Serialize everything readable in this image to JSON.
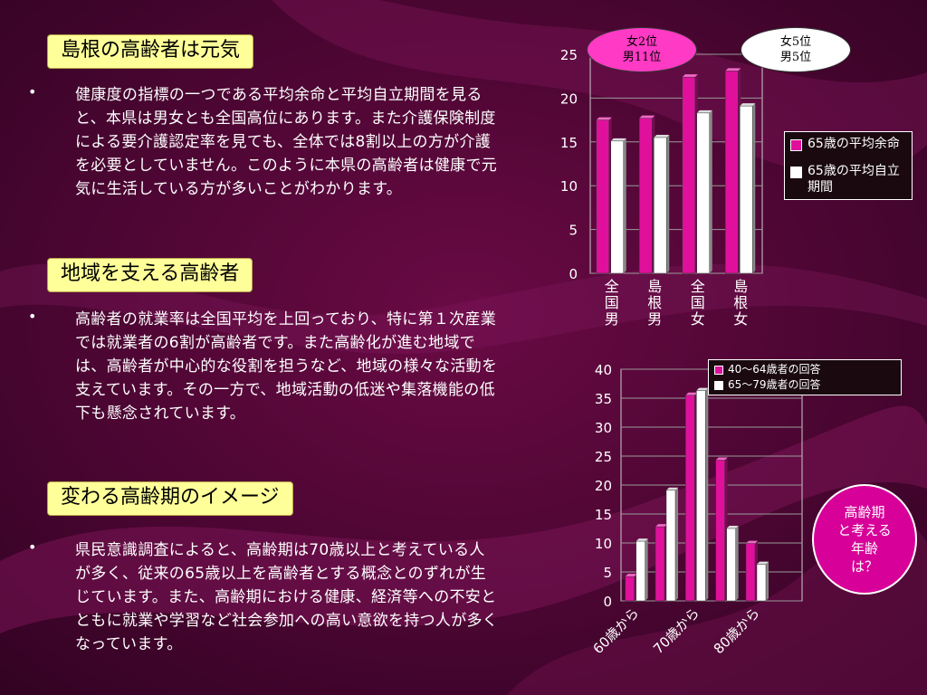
{
  "sections": [
    {
      "title": "島根の高齢者は元気",
      "bullet": "•",
      "text": "健康度の指標の一つである平均余命と平均自立期間を見ると、本県は男女とも全国高位にあります。また介護保険制度による要介護認定率を見ても、全体では8割以上の方が介護を必要としていません。このように本県の高齢者は健康で元気に生活している方が多いことがわかります。"
    },
    {
      "title": "地域を支える高齢者",
      "bullet": "•",
      "text": "高齢者の就業率は全国平均を上回っており、特に第１次産業では就業者の6割が高齢者です。また高齢化が進む地域では、高齢者が中心的な役割を担うなど、地域の様々な活動を支えています。その一方で、地域活動の低迷や集落機能の低下も懸念されています。"
    },
    {
      "title": "変わる高齢期のイメージ",
      "bullet": "•",
      "text": "県民意識調査によると、高齢期は70歳以上と考えている人が多く、従来の65歳以上を高齢者とする概念とのずれが生じています。また、高齢期における健康、経済等への不安とともに就業や学習など社会参加への高い意欲を持つ人が多くなっています。"
    }
  ],
  "annotations": {
    "rank_female_male_left": [
      "女2位",
      "男11位"
    ],
    "rank_female_male_right": [
      "女5位",
      "男5位"
    ],
    "elderly_age_note": [
      "高齢期",
      "と考える",
      "年齢",
      "は？"
    ]
  },
  "colors": {
    "background": "#4a0530",
    "series_magenta": "#e0109c",
    "series_white": "#ffffff",
    "title_box": "#ffff99",
    "note_circle": "#d70099"
  },
  "chart_data": [
    {
      "type": "bar",
      "categories": [
        "全国男",
        "島根男",
        "全国女",
        "島根女"
      ],
      "series": [
        {
          "name": "65歳の平均余命",
          "values": [
            17.5,
            17.7,
            22.4,
            23.1
          ]
        },
        {
          "name": "65歳の平均自立期間",
          "values": [
            15.1,
            15.5,
            18.3,
            19.1
          ]
        }
      ],
      "ylim": [
        0,
        25
      ],
      "yticks": [
        0,
        5,
        10,
        15,
        20,
        25
      ],
      "legend_position": "right",
      "grid": true
    },
    {
      "type": "bar",
      "categories": [
        "60歳から",
        "",
        "70歳から",
        "",
        "80歳から",
        ""
      ],
      "series": [
        {
          "name": "40～64歳者の回答",
          "values": [
            4.2,
            12.8,
            35.5,
            24.3,
            9.9,
            0
          ]
        },
        {
          "name": "65～79歳者の回答",
          "values": [
            10.3,
            19.1,
            36.3,
            12.5,
            6.3,
            0
          ]
        }
      ],
      "ylim": [
        0,
        40
      ],
      "yticks": [
        0,
        5,
        10,
        15,
        20,
        25,
        30,
        35,
        40
      ],
      "legend_position": "top-right",
      "grid": true
    }
  ]
}
